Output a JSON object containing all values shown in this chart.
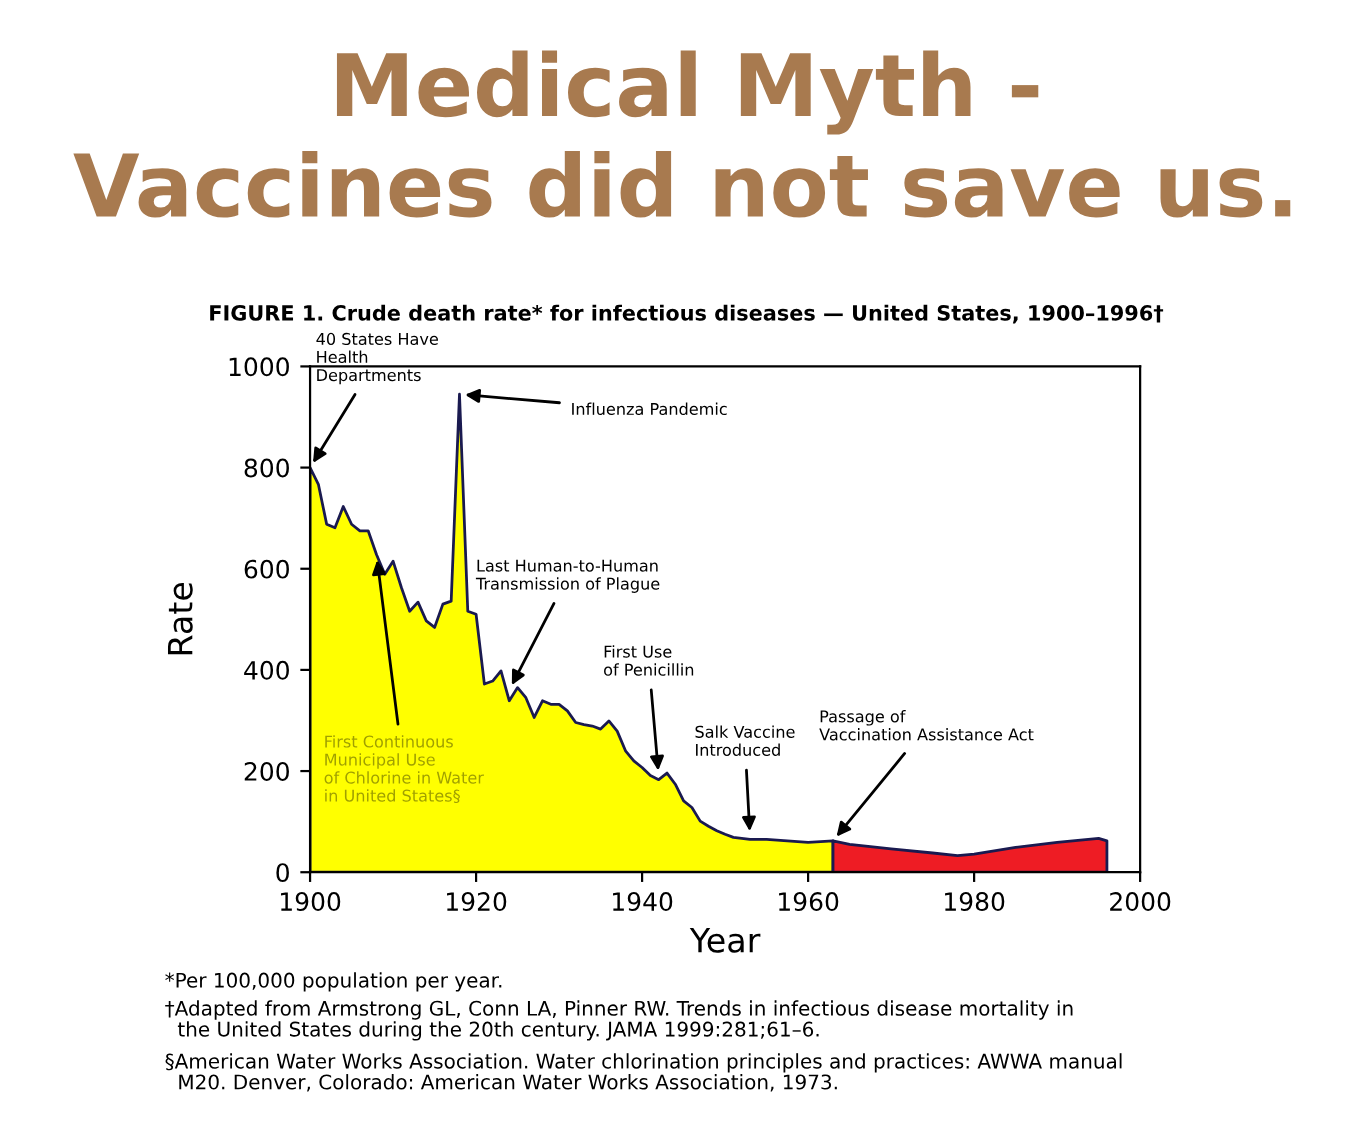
{
  "chart_data": {
    "type": "area",
    "title": "Medical Myth -\nVaccines did not save us.",
    "subtitle": "FIGURE 1. Crude death rate* for infectious diseases — United States, 1900–1996†",
    "xlabel": "Year",
    "ylabel": "Rate",
    "series": [
      {
        "color": "#ffff00",
        "x": [
          1900,
          1901,
          1902,
          1903,
          1904,
          1905,
          1906,
          1907,
          1908,
          1909,
          1910,
          1911,
          1912,
          1913,
          1914,
          1915,
          1916,
          1917,
          1918,
          1919,
          1920,
          1921,
          1922,
          1923,
          1924,
          1925,
          1926,
          1927,
          1928,
          1929,
          1930,
          1931,
          1932,
          1933,
          1934,
          1935,
          1936,
          1937,
          1938,
          1939,
          1940,
          1941,
          1942,
          1943,
          1944,
          1945,
          1946,
          1947,
          1948,
          1949,
          1950,
          1951,
          1953,
          1955,
          1960,
          1963
        ],
        "values": [
          800,
          767,
          688,
          681,
          723,
          688,
          675,
          675,
          628,
          589,
          615,
          563,
          516,
          534,
          497,
          484,
          530,
          536,
          945,
          516,
          510,
          372,
          378,
          398,
          339,
          365,
          345,
          306,
          339,
          332,
          332,
          319,
          296,
          292,
          289,
          283,
          299,
          279,
          240,
          220,
          207,
          191,
          183,
          196,
          174,
          141,
          128,
          101,
          91,
          82,
          75,
          69,
          65,
          65,
          59,
          62
        ]
      },
      {
        "color": "#ee1c24",
        "x": [
          1963,
          1965,
          1970,
          1975,
          1978,
          1980,
          1985,
          1990,
          1995,
          1996
        ],
        "values": [
          62,
          55,
          46,
          38,
          33,
          36,
          49,
          59,
          67,
          62
        ]
      }
    ],
    "xlim": [
      1900,
      2000
    ],
    "xticks": [
      1900,
      1920,
      1940,
      1960,
      1980,
      2000
    ],
    "ylim": [
      0,
      1000
    ],
    "yticks": [
      0,
      200,
      400,
      600,
      800,
      1000
    ],
    "grid": false,
    "legend": false,
    "annotations": [
      {
        "text": "40 States Have\nHealth\nDepartments",
        "x": 1900,
        "y": 800
      },
      {
        "text": "Influenza Pandemic",
        "x": 1918,
        "y": 945
      },
      {
        "text": "First Continuous\nMunicipal Use\nof Chlorine in Water\nin United States§",
        "x": 1908,
        "y": 628
      },
      {
        "text": "Last Human-to-Human\nTransmission of Plague",
        "x": 1924,
        "y": 360
      },
      {
        "text": "First Use\nof Penicillin",
        "x": 1942,
        "y": 190
      },
      {
        "text": "Salk Vaccine\nIntroduced",
        "x": 1953,
        "y": 70
      },
      {
        "text": "Passage of\nVaccination Assistance Act",
        "x": 1963,
        "y": 62
      },
      "*Per 100,000 population per year.",
      "†Adapted from Armstrong GL, Conn LA, Pinner RW. Trends in infectious disease mortality in\n  the United States during the 20th century. JAMA 1999:281;61–6.",
      "§American Water Works Association. Water chlorination principles and practices: AWWA manual\n  M20. Denver, Colorado: American Water Works Association, 1973."
    ]
  }
}
